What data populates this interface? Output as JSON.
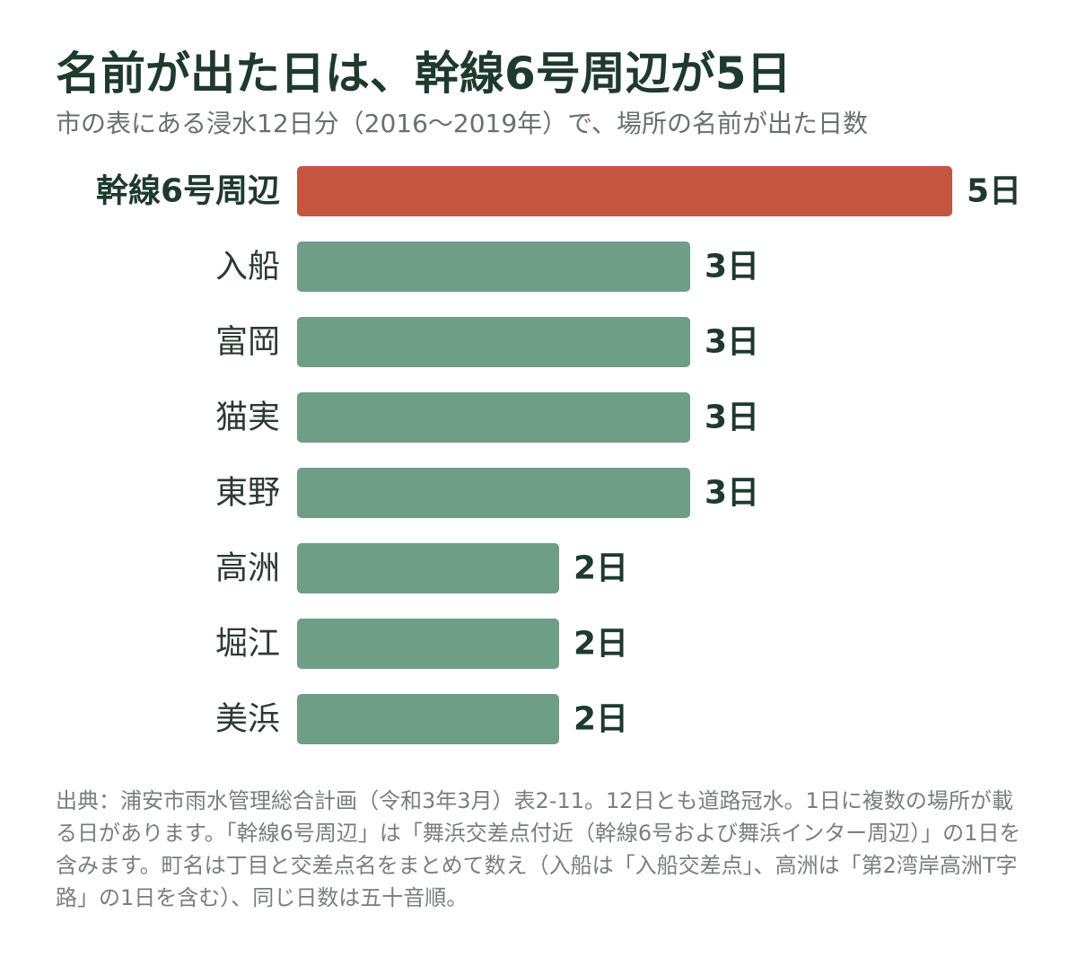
{
  "title": "名前が出た日は、幹線6号周辺が5日",
  "subtitle": "市の表にある浸水12日分（2016〜2019年）で、場所の名前が出た日数",
  "note": "出典：浦安市雨水管理総合計画（令和3年3月）表2-11。12日とも道路冠水。1日に複数の場所が載る日があります。「幹線6号周辺」は「舞浜交差点付近（幹線6号および舞浜インター周辺）」の1日を含みます。町名は丁目と交差点名をまとめて数え（入船は「入船交差点」、高洲は「第2湾岸高洲T字路」の1日を含む）、同じ日数は五十音順。",
  "colors": {
    "highlight": "#c65540",
    "bar": "#6e9e85"
  },
  "chart_data": {
    "type": "bar",
    "orientation": "horizontal",
    "categories": [
      "幹線6号周辺",
      "入船",
      "富岡",
      "猫実",
      "東野",
      "高洲",
      "堀江",
      "美浜"
    ],
    "values": [
      5,
      3,
      3,
      3,
      3,
      2,
      2,
      2
    ],
    "value_labels": [
      "5日",
      "3日",
      "3日",
      "3日",
      "3日",
      "2日",
      "2日",
      "2日"
    ],
    "highlight_index": 0,
    "xlim": [
      0,
      5
    ],
    "grid": false,
    "legend": "none"
  }
}
